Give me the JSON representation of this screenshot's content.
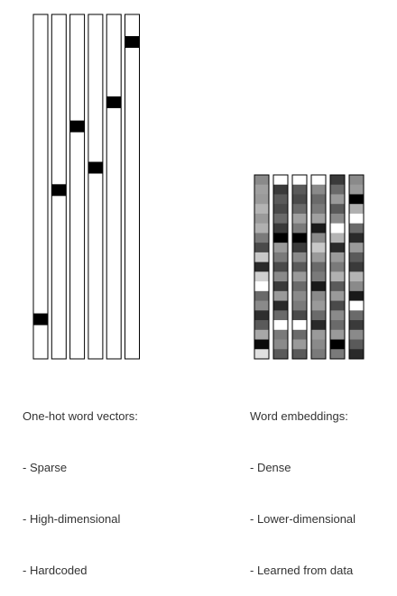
{
  "one_hot": {
    "caption_title": "One-hot word vectors:",
    "bullets": [
      "- Sparse",
      "- High-dimensional",
      "- Hardcoded"
    ],
    "hot_positions": [
      0.885,
      0.51,
      0.325,
      0.445,
      0.255,
      0.08
    ]
  },
  "embeddings": {
    "caption_title": "Word embeddings:",
    "bullets": [
      "- Dense",
      "- Lower-dimensional",
      "- Learned from data"
    ],
    "columns": [
      [
        "#8a8a8a",
        "#a0a0a0",
        "#9a9a9a",
        "#b4b4b4",
        "#9a9a9a",
        "#b0b0b0",
        "#7a7a7a",
        "#4a4a4a",
        "#c8c8c8",
        "#2a2a2a",
        "#d0d0d0",
        "#ffffff",
        "#6a6a6a",
        "#8a8a8a",
        "#2e2e2e",
        "#5a5a5a",
        "#a8a8a8",
        "#0a0a0a",
        "#e0e0e0"
      ],
      [
        "#ffffff",
        "#3a3a3a",
        "#5a5a5a",
        "#4a4a4a",
        "#6a6a6a",
        "#3a3a3a",
        "#000000",
        "#9a9a9a",
        "#7a7a7a",
        "#4a4a4a",
        "#8a8a8a",
        "#3a3a3a",
        "#9a9a9a",
        "#2a2a2a",
        "#6a6a6a",
        "#ffffff",
        "#7a7a7a",
        "#8a8a8a",
        "#5a5a5a"
      ],
      [
        "#ffffff",
        "#5a5a5a",
        "#4a4a4a",
        "#6a6a6a",
        "#a0a0a0",
        "#7a7a7a",
        "#000000",
        "#3a3a3a",
        "#8a8a8a",
        "#5a5a5a",
        "#9a9a9a",
        "#6a6a6a",
        "#8a8a8a",
        "#7a7a7a",
        "#4a4a4a",
        "#ffffff",
        "#6a6a6a",
        "#9a9a9a",
        "#5a5a5a"
      ],
      [
        "#ffffff",
        "#8a8a8a",
        "#6a6a6a",
        "#7a7a7a",
        "#a0a0a0",
        "#1a1a1a",
        "#8a8a8a",
        "#c8c8c8",
        "#9a9a9a",
        "#6a6a6a",
        "#7a7a7a",
        "#1a1a1a",
        "#8a8a8a",
        "#9a9a9a",
        "#6a6a6a",
        "#2a2a2a",
        "#9a9a9a",
        "#8a8a8a",
        "#7a7a7a"
      ],
      [
        "#3a3a3a",
        "#6a6a6a",
        "#9a9a9a",
        "#5a5a5a",
        "#8a8a8a",
        "#ffffff",
        "#b4b4b4",
        "#2a2a2a",
        "#9a9a9a",
        "#7a7a7a",
        "#b0b0b0",
        "#5a5a5a",
        "#9a9a9a",
        "#4a4a4a",
        "#8a8a8a",
        "#6a6a6a",
        "#9a9a9a",
        "#000000",
        "#7a7a7a"
      ],
      [
        "#8a8a8a",
        "#9a9a9a",
        "#000000",
        "#b0b0b0",
        "#ffffff",
        "#6a6a6a",
        "#2a2a2a",
        "#9a9a9a",
        "#5a5a5a",
        "#3a3a3a",
        "#b4b4b4",
        "#8a8a8a",
        "#1a1a1a",
        "#ffffff",
        "#6a6a6a",
        "#3a3a3a",
        "#8a8a8a",
        "#5a5a5a",
        "#2a2a2a"
      ]
    ]
  }
}
